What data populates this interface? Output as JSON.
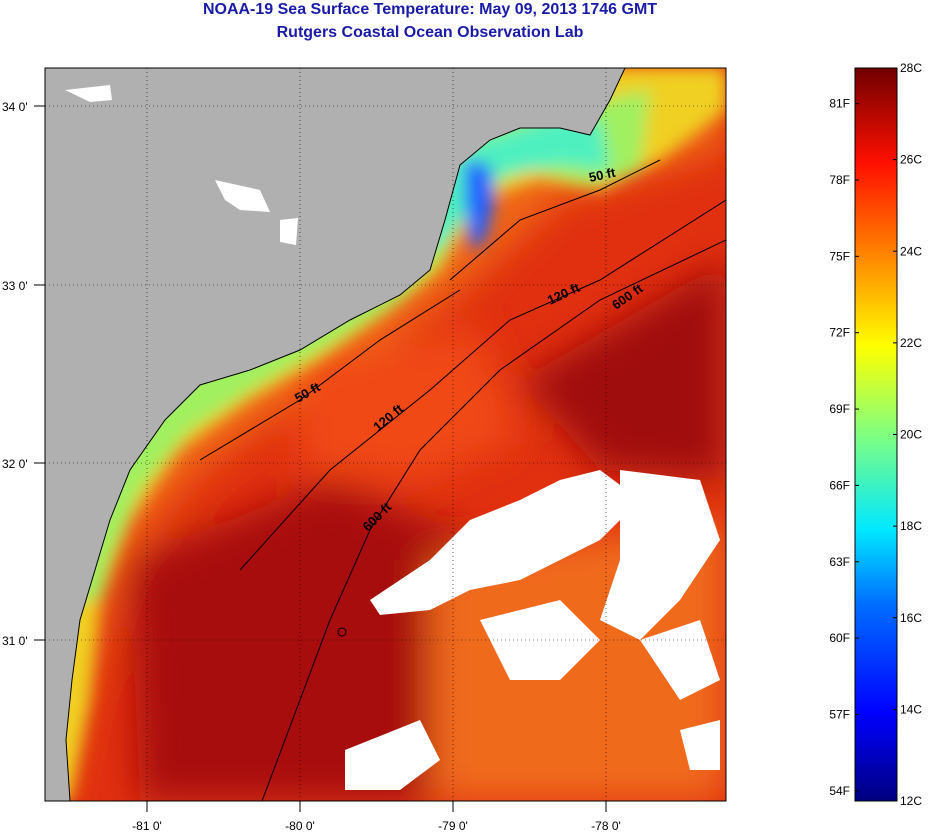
{
  "title": {
    "line1": "NOAA-19 Sea Surface Temperature:  May 09, 2013 1746 GMT",
    "line2": "Rutgers Coastal Ocean Observation Lab"
  },
  "map": {
    "lon_ticks": [
      "-81 0'",
      "-80 0'",
      "-79 0'",
      "-78 0'"
    ],
    "lat_ticks": [
      "34 0'",
      "33 0'",
      "32 0'",
      "31 0'"
    ],
    "contours": [
      "50 ft",
      "50 ft",
      "120 ft",
      "120 ft",
      "600 ft",
      "600 ft"
    ],
    "colors": {
      "land": "#b0b0b0",
      "cloud": "#ffffff",
      "coast": "#000000"
    }
  },
  "colorbar": {
    "fahrenheit": [
      "81F",
      "78F",
      "75F",
      "72F",
      "69F",
      "66F",
      "63F",
      "60F",
      "57F",
      "54F"
    ],
    "celsius": [
      "28C",
      "26C",
      "24C",
      "22C",
      "20C",
      "18C",
      "16C",
      "14C",
      "12C"
    ],
    "range_c": [
      12,
      28
    ]
  }
}
